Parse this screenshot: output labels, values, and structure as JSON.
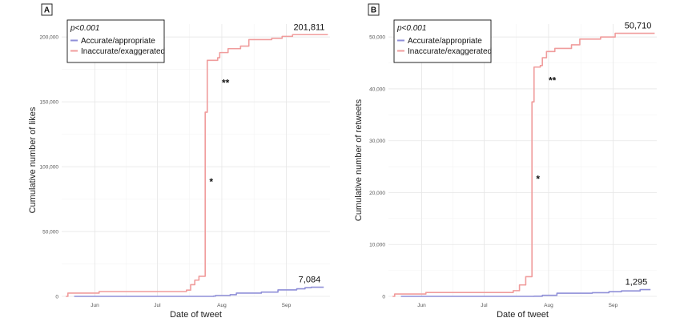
{
  "chart_data": [
    {
      "type": "line",
      "panel_label": "A",
      "xlabel": "Date of tweet",
      "ylabel": "Cumulative number of likes",
      "ylim": [
        0,
        210000
      ],
      "y_ticks": [
        0,
        50000,
        100000,
        150000,
        200000
      ],
      "y_tick_labels": [
        "0",
        "50,000",
        "100,000",
        "150,000",
        "200,000"
      ],
      "x_range": [
        "2020-05-16",
        "2020-09-22"
      ],
      "x_ticks": [
        "2020-06-01",
        "2020-07-01",
        "2020-08-01",
        "2020-09-01"
      ],
      "x_tick_labels": [
        "Jun",
        "Jul",
        "Aug",
        "Sep"
      ],
      "grid": true,
      "legend_position": "top-left",
      "legend_annotation": "p<0.001",
      "series": [
        {
          "name": "Accurate/appropriate",
          "color": "#8f8fd8",
          "points": [
            [
              "2020-05-22",
              0
            ],
            [
              "2020-07-28",
              200
            ],
            [
              "2020-07-29",
              700
            ],
            [
              "2020-08-05",
              1300
            ],
            [
              "2020-08-08",
              2500
            ],
            [
              "2020-08-20",
              3300
            ],
            [
              "2020-08-28",
              5000
            ],
            [
              "2020-09-06",
              5800
            ],
            [
              "2020-09-10",
              6700
            ],
            [
              "2020-09-13",
              7084
            ],
            [
              "2020-09-19",
              7084
            ]
          ],
          "end_label": "7,084"
        },
        {
          "name": "Inaccurate/exaggerated",
          "color": "#f09c9c",
          "points": [
            [
              "2020-05-18",
              0
            ],
            [
              "2020-05-19",
              2500
            ],
            [
              "2020-06-02",
              2500
            ],
            [
              "2020-06-03",
              3700
            ],
            [
              "2020-07-14",
              3700
            ],
            [
              "2020-07-15",
              4800
            ],
            [
              "2020-07-17",
              9000
            ],
            [
              "2020-07-19",
              12500
            ],
            [
              "2020-07-21",
              15500
            ],
            [
              "2020-07-24",
              16000
            ],
            [
              "2020-07-24",
              142000
            ],
            [
              "2020-07-25",
              182000
            ],
            [
              "2020-07-30",
              184000
            ],
            [
              "2020-07-31",
              188000
            ],
            [
              "2020-08-04",
              191000
            ],
            [
              "2020-08-10",
              193000
            ],
            [
              "2020-08-14",
              198000
            ],
            [
              "2020-08-25",
              199000
            ],
            [
              "2020-08-30",
              200500
            ],
            [
              "2020-09-04",
              201811
            ],
            [
              "2020-09-21",
              201811
            ]
          ],
          "end_label": "201,811"
        }
      ],
      "annotations": [
        {
          "text": "*",
          "x": "2020-07-26",
          "y": 86000
        },
        {
          "text": "**",
          "x": "2020-08-01",
          "y": 162000
        }
      ]
    },
    {
      "type": "line",
      "panel_label": "B",
      "xlabel": "Date of tweet",
      "ylabel": "Cumulative number of retweets",
      "ylim": [
        0,
        52500
      ],
      "y_ticks": [
        0,
        10000,
        20000,
        30000,
        40000,
        50000
      ],
      "y_tick_labels": [
        "0",
        "10,000",
        "20,000",
        "30,000",
        "40,000",
        "50,000"
      ],
      "x_range": [
        "2020-05-16",
        "2020-09-22"
      ],
      "x_ticks": [
        "2020-06-01",
        "2020-07-01",
        "2020-08-01",
        "2020-09-01"
      ],
      "x_tick_labels": [
        "Jun",
        "Jul",
        "Aug",
        "Sep"
      ],
      "grid": true,
      "legend_position": "top-left",
      "legend_annotation": "p<0.001",
      "series": [
        {
          "name": "Accurate/appropriate",
          "color": "#8f8fd8",
          "points": [
            [
              "2020-05-22",
              0
            ],
            [
              "2020-07-25",
              30
            ],
            [
              "2020-07-29",
              200
            ],
            [
              "2020-08-05",
              600
            ],
            [
              "2020-08-22",
              700
            ],
            [
              "2020-08-30",
              900
            ],
            [
              "2020-09-05",
              1050
            ],
            [
              "2020-09-14",
              1295
            ],
            [
              "2020-09-19",
              1295
            ]
          ],
          "end_label": "1,295"
        },
        {
          "name": "Inaccurate/exaggerated",
          "color": "#f09c9c",
          "points": [
            [
              "2020-05-18",
              0
            ],
            [
              "2020-05-19",
              450
            ],
            [
              "2020-06-02",
              450
            ],
            [
              "2020-06-03",
              750
            ],
            [
              "2020-07-14",
              750
            ],
            [
              "2020-07-15",
              1100
            ],
            [
              "2020-07-18",
              2200
            ],
            [
              "2020-07-21",
              3800
            ],
            [
              "2020-07-24",
              4200
            ],
            [
              "2020-07-24",
              37500
            ],
            [
              "2020-07-25",
              44200
            ],
            [
              "2020-07-28",
              44500
            ],
            [
              "2020-07-29",
              46000
            ],
            [
              "2020-07-31",
              47200
            ],
            [
              "2020-08-04",
              47800
            ],
            [
              "2020-08-12",
              48500
            ],
            [
              "2020-08-16",
              49600
            ],
            [
              "2020-08-26",
              50000
            ],
            [
              "2020-09-02",
              50710
            ],
            [
              "2020-09-21",
              50710
            ]
          ],
          "end_label": "50,710"
        }
      ],
      "annotations": [
        {
          "text": "*",
          "x": "2020-07-26",
          "y": 22000
        },
        {
          "text": "**",
          "x": "2020-08-01",
          "y": 41000
        }
      ]
    }
  ]
}
